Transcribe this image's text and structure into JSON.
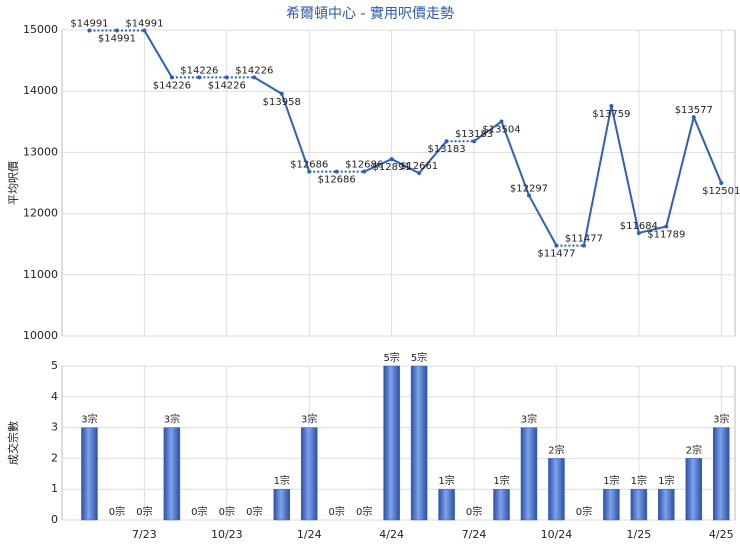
{
  "chart_data": [
    {
      "type": "line",
      "title": "希爾頓中心 - 實用呎價走勢",
      "y_label": "平均呎價",
      "series": [
        {
          "color": "#2b5fc7",
          "values": [
            14991,
            14991,
            14991,
            14226,
            14226,
            14226,
            14226,
            13958,
            12686,
            12686,
            12686,
            12891,
            12661,
            13183,
            13183,
            13504,
            12297,
            11477,
            11477,
            13759,
            11684,
            11789,
            13577,
            12501
          ],
          "value_labels": [
            "$14991",
            "$14991",
            "$14991",
            "$14226",
            "$14226",
            "$14226",
            "$14226",
            "$13958",
            "$12686",
            "$12686",
            "$12686",
            "$12891",
            "$12661",
            "$13183",
            "$13183",
            "$13504",
            "$12297",
            "$11477",
            "$11477",
            "$13759",
            "$11684",
            "$11789",
            "$13577",
            "$12501"
          ]
        }
      ],
      "ylim": [
        10000,
        15000
      ],
      "yticks": [
        10000,
        11000,
        12000,
        13000,
        14000,
        15000
      ],
      "grid": true
    },
    {
      "type": "bar",
      "y_label": "成交宗數",
      "categories": [
        null,
        null,
        "7/23",
        null,
        null,
        "10/23",
        null,
        null,
        "1/24",
        null,
        null,
        "4/24",
        null,
        null,
        "7/24",
        null,
        null,
        "10/24",
        null,
        null,
        "1/25",
        null,
        null,
        "4/25"
      ],
      "series": [
        {
          "color": "#3563c6",
          "values": [
            3,
            0,
            0,
            3,
            0,
            0,
            0,
            1,
            3,
            0,
            0,
            5,
            5,
            1,
            0,
            1,
            3,
            2,
            0,
            1,
            1,
            1,
            2,
            3
          ],
          "value_labels": [
            "3宗",
            "0宗",
            "0宗",
            "3宗",
            "0宗",
            "0宗",
            "0宗",
            "1宗",
            "3宗",
            "0宗",
            "0宗",
            "5宗",
            "5宗",
            "1宗",
            "0宗",
            "1宗",
            "3宗",
            "2宗",
            "0宗",
            "1宗",
            "1宗",
            "1宗",
            "2宗",
            "3宗"
          ]
        }
      ],
      "ylim": [
        0,
        5
      ],
      "yticks": [
        0,
        1,
        2,
        3,
        4,
        5
      ],
      "grid": true
    }
  ]
}
